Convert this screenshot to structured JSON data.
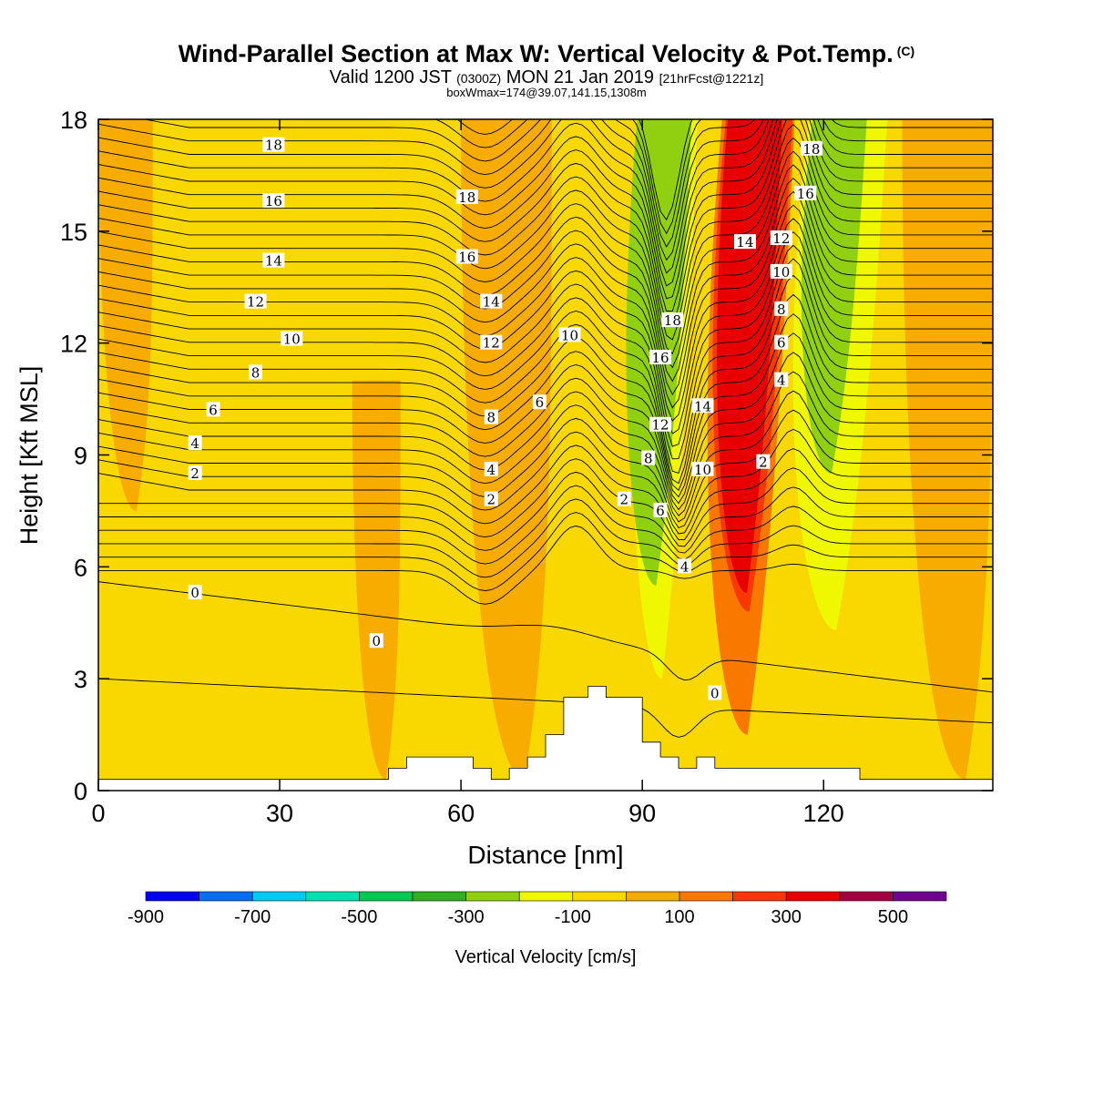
{
  "header": {
    "title": "Wind-Parallel Section at Max W: Vertical Velocity & Pot.Temp.",
    "copyright": "(C)",
    "valid_prefix": "Valid 1200 JST",
    "valid_utc": "(0300Z)",
    "valid_date": "MON 21 Jan 2019",
    "forecast": "[21hrFcst@1221z]",
    "boxmax": "boxWmax=174@39.07,141.15,1308m"
  },
  "chart_data": {
    "type": "heatmap",
    "title": "Wind-Parallel Section at Max W: Vertical Velocity & Pot.Temp.",
    "xlabel": "Distance [nm]",
    "ylabel": "Height [Kft MSL]",
    "xlim": [
      0,
      148
    ],
    "ylim": [
      0,
      18
    ],
    "xticks": [
      0,
      30,
      60,
      90,
      120
    ],
    "yticks": [
      0,
      3,
      6,
      9,
      12,
      15,
      18
    ],
    "colorbar": {
      "label": "Vertical Velocity [cm/s]",
      "tick_labels": [
        -900,
        -700,
        -500,
        -300,
        -100,
        100,
        300,
        500
      ],
      "bounds": [
        -900,
        -800,
        -700,
        -600,
        -500,
        -400,
        -300,
        -200,
        -100,
        0,
        100,
        200,
        300,
        400,
        500,
        600
      ],
      "colors": [
        "#0000ee",
        "#0070f0",
        "#00c8f8",
        "#00e0b0",
        "#00c850",
        "#30b020",
        "#90d010",
        "#f0f800",
        "#f8d800",
        "#f8ac00",
        "#f87800",
        "#f83800",
        "#e80000",
        "#a00040",
        "#700090"
      ]
    },
    "field_regions": [
      {
        "range": "0 to 100",
        "x": [
          0,
          9
        ],
        "y": [
          7.5,
          18
        ]
      },
      {
        "range": "0 to 100",
        "x": [
          42,
          50
        ],
        "y": [
          0.3,
          11
        ]
      },
      {
        "range": "0 to 100",
        "x": [
          60,
          75
        ],
        "y": [
          0.3,
          18
        ]
      },
      {
        "range": "-200 to -100",
        "x": [
          87,
          96
        ],
        "y": [
          3,
          18
        ]
      },
      {
        "range": "-300 to -200",
        "x": [
          86,
          95
        ],
        "y": [
          5.5,
          18
        ]
      },
      {
        "range": "100 to 200",
        "x": [
          99,
          111
        ],
        "y": [
          1.5,
          18
        ]
      },
      {
        "range": "200 to 300",
        "x": [
          100,
          111
        ],
        "y": [
          4.8,
          18
        ]
      },
      {
        "range": "300 to 400",
        "x": [
          101,
          110
        ],
        "y": [
          5.3,
          18
        ]
      },
      {
        "range": "-200 to -100",
        "x": [
          113,
          126
        ],
        "y": [
          4.3,
          18
        ]
      },
      {
        "range": "-300 to -200",
        "x": [
          115,
          124
        ],
        "y": [
          8.5,
          18
        ]
      },
      {
        "range": "0 to 100",
        "x": [
          133,
          148
        ],
        "y": [
          0.3,
          18
        ]
      }
    ],
    "isentrope_labels": [
      {
        "text": "18",
        "x": 29,
        "y": 17.3
      },
      {
        "text": "16",
        "x": 29,
        "y": 15.8
      },
      {
        "text": "14",
        "x": 29,
        "y": 14.2
      },
      {
        "text": "12",
        "x": 26,
        "y": 13.1
      },
      {
        "text": "10",
        "x": 32,
        "y": 12.1
      },
      {
        "text": "8",
        "x": 26,
        "y": 11.2
      },
      {
        "text": "6",
        "x": 19,
        "y": 10.2
      },
      {
        "text": "4",
        "x": 16,
        "y": 9.3
      },
      {
        "text": "2",
        "x": 16,
        "y": 8.5
      },
      {
        "text": "0",
        "x": 16,
        "y": 5.3
      },
      {
        "text": "0",
        "x": 46,
        "y": 4.0
      },
      {
        "text": "18",
        "x": 61,
        "y": 15.9
      },
      {
        "text": "16",
        "x": 61,
        "y": 14.3
      },
      {
        "text": "14",
        "x": 65,
        "y": 13.1
      },
      {
        "text": "12",
        "x": 65,
        "y": 12.0
      },
      {
        "text": "10",
        "x": 78,
        "y": 12.2
      },
      {
        "text": "8",
        "x": 65,
        "y": 10.0
      },
      {
        "text": "6",
        "x": 73,
        "y": 10.4
      },
      {
        "text": "4",
        "x": 65,
        "y": 8.6
      },
      {
        "text": "2",
        "x": 65,
        "y": 7.8
      },
      {
        "text": "18",
        "x": 95,
        "y": 12.6
      },
      {
        "text": "16",
        "x": 93,
        "y": 11.6
      },
      {
        "text": "14",
        "x": 100,
        "y": 10.3
      },
      {
        "text": "12",
        "x": 93,
        "y": 9.8
      },
      {
        "text": "10",
        "x": 100,
        "y": 8.6
      },
      {
        "text": "8",
        "x": 91,
        "y": 8.9
      },
      {
        "text": "6",
        "x": 93,
        "y": 7.5
      },
      {
        "text": "4",
        "x": 97,
        "y": 6.0
      },
      {
        "text": "2",
        "x": 87,
        "y": 7.8
      },
      {
        "text": "0",
        "x": 102,
        "y": 2.6
      },
      {
        "text": "14",
        "x": 107,
        "y": 14.7
      },
      {
        "text": "12",
        "x": 113,
        "y": 14.8
      },
      {
        "text": "10",
        "x": 113,
        "y": 13.9
      },
      {
        "text": "8",
        "x": 113,
        "y": 12.9
      },
      {
        "text": "6",
        "x": 113,
        "y": 12.0
      },
      {
        "text": "4",
        "x": 113,
        "y": 11.0
      },
      {
        "text": "2",
        "x": 110,
        "y": 8.8
      },
      {
        "text": "18",
        "x": 118,
        "y": 17.2
      },
      {
        "text": "16",
        "x": 117,
        "y": 16.0
      }
    ],
    "terrain": {
      "x": [
        0,
        48,
        48,
        51,
        51,
        62,
        62,
        65,
        65,
        68,
        68,
        71,
        71,
        74,
        74,
        77,
        77,
        81,
        81,
        84,
        84,
        90,
        90,
        93,
        93,
        96,
        96,
        99,
        99,
        102,
        102,
        126,
        126,
        129,
        129,
        148
      ],
      "y": [
        0.3,
        0.3,
        0.6,
        0.6,
        0.9,
        0.9,
        0.6,
        0.6,
        0.3,
        0.3,
        0.6,
        0.6,
        0.9,
        0.9,
        1.5,
        1.5,
        2.5,
        2.5,
        2.8,
        2.8,
        2.5,
        2.5,
        1.3,
        1.3,
        0.9,
        0.9,
        0.6,
        0.6,
        0.9,
        0.9,
        0.6,
        0.6,
        0.3,
        0.3,
        0.3,
        0.3
      ]
    }
  }
}
